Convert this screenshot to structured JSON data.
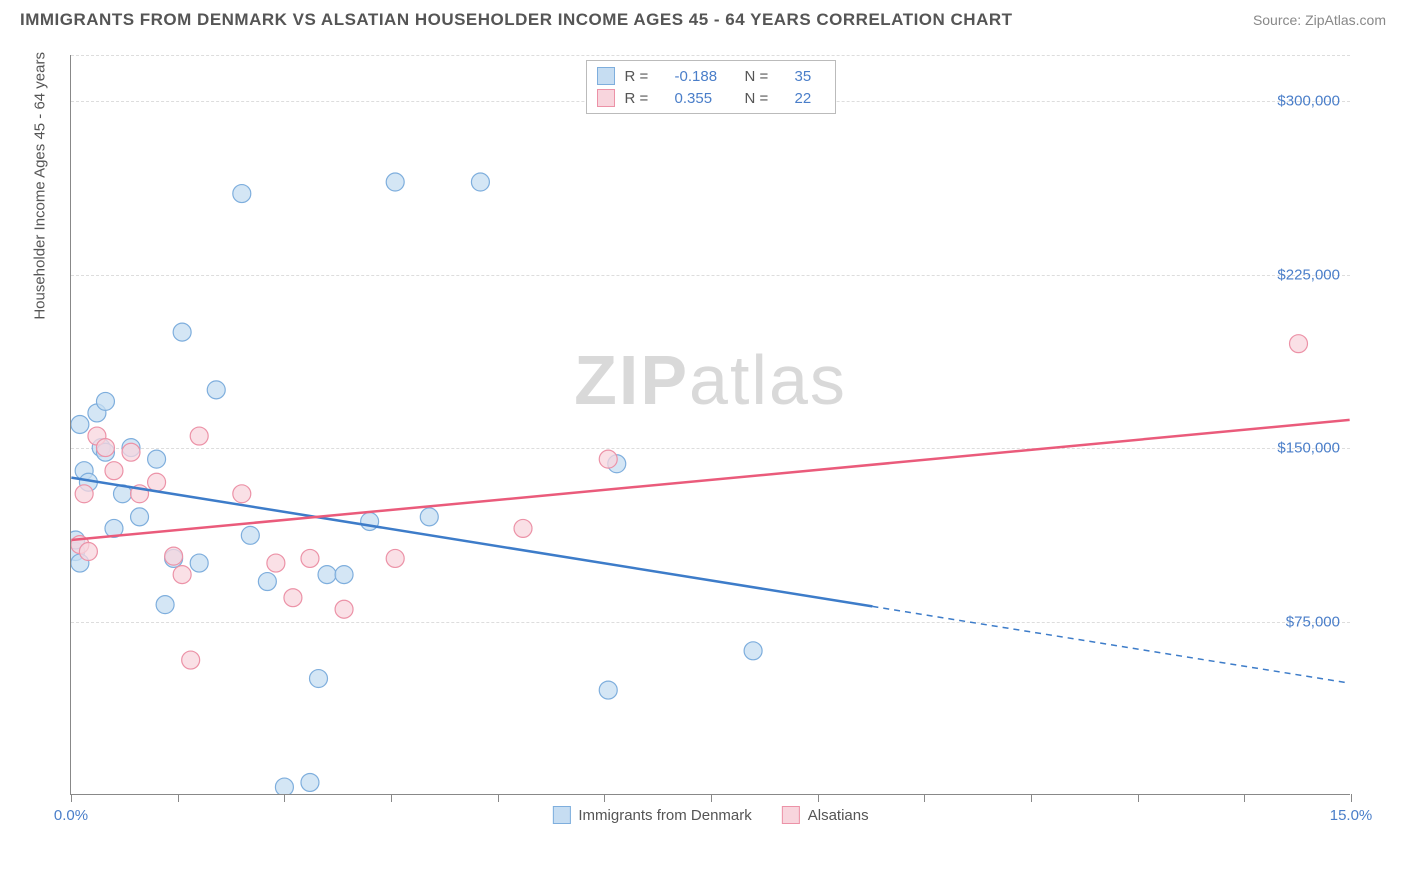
{
  "title": "IMMIGRANTS FROM DENMARK VS ALSATIAN HOUSEHOLDER INCOME AGES 45 - 64 YEARS CORRELATION CHART",
  "source": "Source: ZipAtlas.com",
  "ylabel": "Householder Income Ages 45 - 64 years",
  "watermark_a": "ZIP",
  "watermark_b": "atlas",
  "chart": {
    "type": "scatter",
    "xlim": [
      0,
      15
    ],
    "ylim": [
      0,
      320000
    ],
    "xticks": [
      0,
      1.25,
      2.5,
      3.75,
      5.0,
      6.25,
      7.5,
      8.75,
      10.0,
      11.25,
      12.5,
      13.75,
      15.0
    ],
    "xtick_labels_shown": {
      "0": "0.0%",
      "15": "15.0%"
    },
    "yticks": [
      75000,
      150000,
      225000,
      300000
    ],
    "ytick_labels": [
      "$75,000",
      "$150,000",
      "$225,000",
      "$300,000"
    ],
    "grid_color": "#dddddd",
    "axis_color": "#888888",
    "background_color": "#ffffff",
    "marker_radius": 9,
    "marker_stroke_width": 1.2,
    "line_width": 2.5
  },
  "series": [
    {
      "name": "Immigrants from Denmark",
      "fill": "#c6ddf2",
      "stroke": "#7eaedd",
      "line_color": "#3d7cc9",
      "R": "-0.188",
      "N": "35",
      "trend": {
        "x1": 0,
        "y1": 137000,
        "x2": 15,
        "y2": 48000,
        "solid_until_x": 9.4
      },
      "points": [
        [
          0.05,
          105000
        ],
        [
          0.05,
          110000
        ],
        [
          0.1,
          100000
        ],
        [
          0.1,
          160000
        ],
        [
          0.15,
          140000
        ],
        [
          0.2,
          135000
        ],
        [
          0.3,
          165000
        ],
        [
          0.35,
          150000
        ],
        [
          0.4,
          170000
        ],
        [
          0.4,
          148000
        ],
        [
          0.5,
          115000
        ],
        [
          0.6,
          130000
        ],
        [
          0.7,
          150000
        ],
        [
          0.8,
          120000
        ],
        [
          1.0,
          145000
        ],
        [
          1.1,
          82000
        ],
        [
          1.2,
          102000
        ],
        [
          1.3,
          200000
        ],
        [
          1.5,
          100000
        ],
        [
          1.7,
          175000
        ],
        [
          2.0,
          260000
        ],
        [
          2.1,
          112000
        ],
        [
          2.3,
          92000
        ],
        [
          2.5,
          3000
        ],
        [
          2.8,
          5000
        ],
        [
          2.9,
          50000
        ],
        [
          3.0,
          95000
        ],
        [
          3.2,
          95000
        ],
        [
          3.5,
          118000
        ],
        [
          3.8,
          265000
        ],
        [
          4.2,
          120000
        ],
        [
          4.8,
          265000
        ],
        [
          6.3,
          45000
        ],
        [
          6.4,
          143000
        ],
        [
          8.0,
          62000
        ]
      ]
    },
    {
      "name": "Alsatians",
      "fill": "#f8d5dd",
      "stroke": "#ec92a7",
      "line_color": "#ea5b7b",
      "R": "0.355",
      "N": "22",
      "trend": {
        "x1": 0,
        "y1": 110000,
        "x2": 15,
        "y2": 162000,
        "solid_until_x": 15
      },
      "points": [
        [
          0.1,
          108000
        ],
        [
          0.15,
          130000
        ],
        [
          0.2,
          105000
        ],
        [
          0.3,
          155000
        ],
        [
          0.4,
          150000
        ],
        [
          0.5,
          140000
        ],
        [
          0.7,
          148000
        ],
        [
          0.8,
          130000
        ],
        [
          1.0,
          135000
        ],
        [
          1.2,
          103000
        ],
        [
          1.3,
          95000
        ],
        [
          1.4,
          58000
        ],
        [
          1.5,
          155000
        ],
        [
          2.0,
          130000
        ],
        [
          2.4,
          100000
        ],
        [
          2.6,
          85000
        ],
        [
          2.8,
          102000
        ],
        [
          3.2,
          80000
        ],
        [
          3.8,
          102000
        ],
        [
          5.3,
          115000
        ],
        [
          6.3,
          145000
        ],
        [
          14.4,
          195000
        ]
      ]
    }
  ],
  "legend_labels": {
    "R": "R =",
    "N": "N ="
  }
}
